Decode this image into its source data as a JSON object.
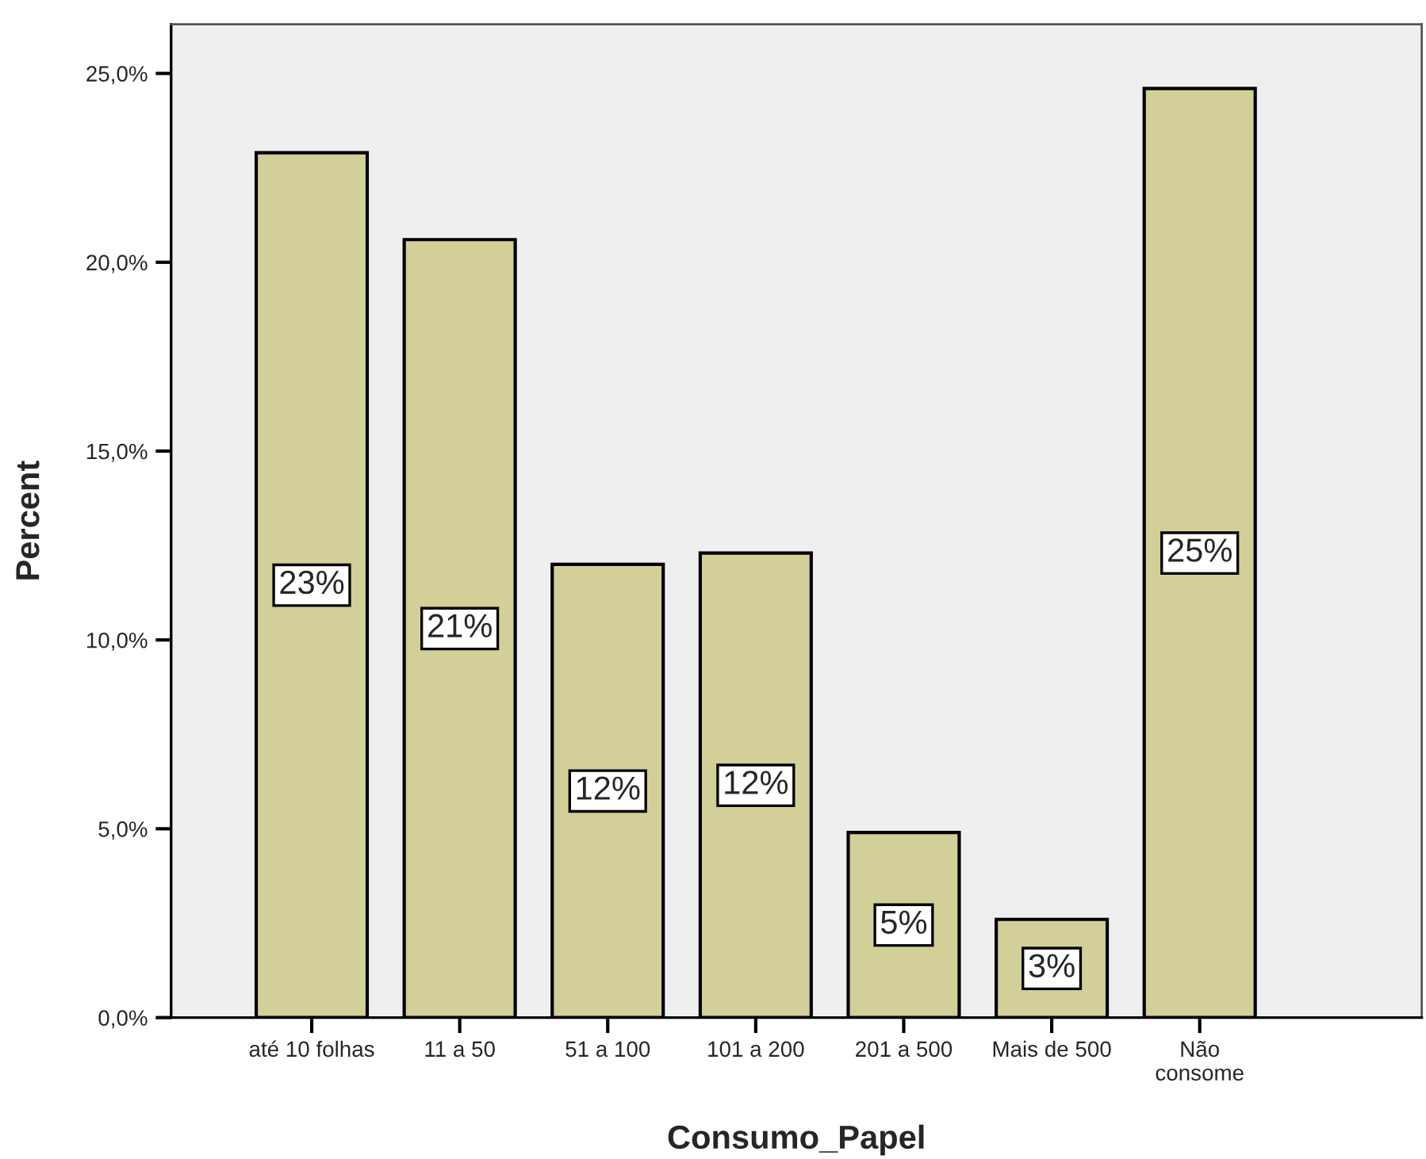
{
  "chart_data": {
    "type": "bar",
    "xlabel": "Consumo_Papel",
    "ylabel": "Percent",
    "categories": [
      "até 10 folhas",
      "11 a 50",
      "51 a 100",
      "101 a 200",
      "201 a 500",
      "Mais de 500",
      "Não\nconsome"
    ],
    "values": [
      22.9,
      20.6,
      12.0,
      12.3,
      4.9,
      2.6,
      24.6
    ],
    "value_labels": [
      "23%",
      "21%",
      "12%",
      "12%",
      "5%",
      "3%",
      "25%"
    ],
    "color": "#d3cf98",
    "ylim": [
      0,
      26.3
    ],
    "yticks": [
      {
        "value": 0,
        "label": "0,0%"
      },
      {
        "value": 5,
        "label": "5,0%"
      },
      {
        "value": 10,
        "label": "10,0%"
      },
      {
        "value": 15,
        "label": "15,0%"
      },
      {
        "value": 20,
        "label": "20,0%"
      },
      {
        "value": 25,
        "label": "25,0%"
      }
    ],
    "grid": false,
    "legend": false
  }
}
